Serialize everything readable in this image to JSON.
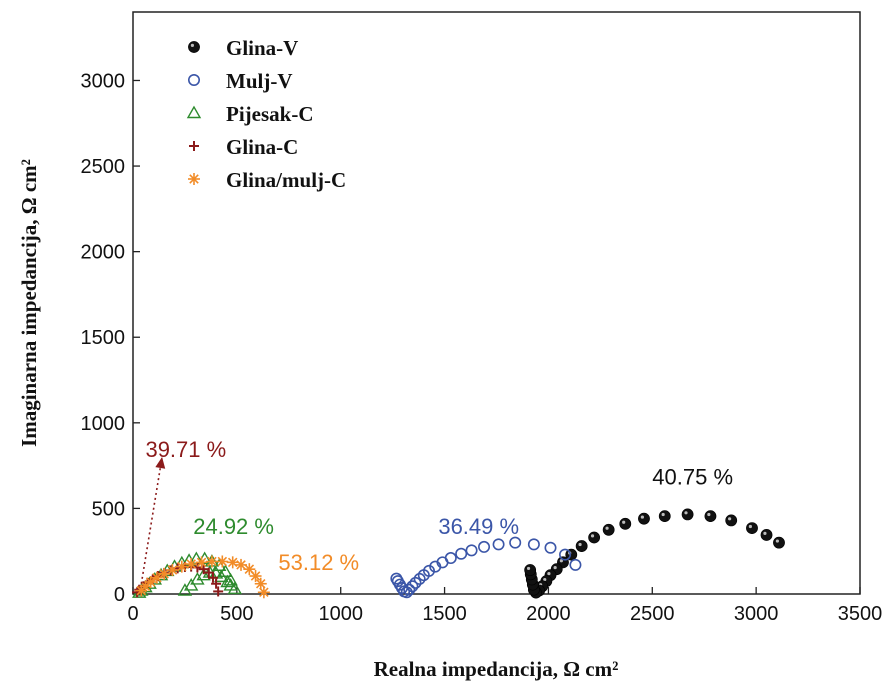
{
  "chart_data": {
    "type": "scatter",
    "xlabel": "Realna impedancija, Ω cm²",
    "ylabel": "Imaginarna impedancija, Ω cm²",
    "xlim": [
      0,
      3500
    ],
    "ylim": [
      0,
      3400
    ],
    "xticks": [
      "0",
      "500",
      "1000",
      "1500",
      "2000",
      "2500",
      "3000",
      "3500"
    ],
    "yticks": [
      "0",
      "500",
      "1000",
      "1500",
      "2000",
      "2500",
      "3000"
    ],
    "grid": false,
    "legend_position": "top-left",
    "series": [
      {
        "name": "Glina-V",
        "marker": "filled-circle",
        "color": "#111111",
        "x": [
          3110,
          3050,
          2980,
          2880,
          2780,
          2670,
          2560,
          2460,
          2370,
          2290,
          2220,
          2160,
          2110,
          2070,
          2040,
          2010,
          1990,
          1970,
          1955,
          1940,
          1930,
          1925,
          1920,
          1915,
          1912
        ],
        "y": [
          300,
          345,
          385,
          430,
          455,
          465,
          455,
          440,
          410,
          375,
          330,
          280,
          230,
          185,
          145,
          110,
          75,
          45,
          20,
          8,
          25,
          55,
          85,
          115,
          140
        ]
      },
      {
        "name": "Mulj-V",
        "marker": "open-circle",
        "color": "#3b56a8",
        "x": [
          2130,
          2080,
          2010,
          1930,
          1840,
          1760,
          1690,
          1630,
          1580,
          1530,
          1490,
          1455,
          1425,
          1400,
          1380,
          1360,
          1345,
          1330,
          1318,
          1305,
          1295,
          1285,
          1275,
          1268
        ],
        "y": [
          170,
          230,
          270,
          290,
          300,
          290,
          275,
          255,
          235,
          210,
          185,
          160,
          135,
          110,
          88,
          65,
          45,
          25,
          10,
          15,
          35,
          55,
          75,
          90
        ]
      },
      {
        "name": "Pijesak-C",
        "marker": "open-triangle",
        "color": "#2e8b2e",
        "x": [
          490,
          470,
          445,
          415,
          380,
          345,
          305,
          270,
          235,
          200,
          165,
          135,
          105,
          80,
          60,
          40,
          30,
          250,
          280,
          310,
          340,
          370,
          400,
          425,
          455,
          470
        ],
        "y": [
          30,
          80,
          130,
          165,
          190,
          205,
          205,
          195,
          180,
          160,
          135,
          110,
          85,
          60,
          40,
          20,
          8,
          20,
          50,
          85,
          110,
          125,
          120,
          100,
          70,
          50
        ]
      },
      {
        "name": "Glina-C",
        "marker": "plus",
        "color": "#8b1a1a",
        "x": [
          410,
          400,
          385,
          365,
          340,
          310,
          280,
          250,
          215,
          180,
          150,
          120,
          95,
          70,
          50,
          30,
          20
        ],
        "y": [
          15,
          60,
          95,
          125,
          145,
          155,
          160,
          158,
          150,
          138,
          122,
          105,
          85,
          65,
          45,
          25,
          10
        ]
      },
      {
        "name": "Glina/mulj-C",
        "marker": "asterisk",
        "color": "#f28c28",
        "x": [
          630,
          615,
          590,
          560,
          520,
          480,
          430,
          380,
          330,
          280,
          235,
          190,
          150,
          115,
          85,
          60,
          40
        ],
        "y": [
          10,
          60,
          105,
          145,
          170,
          185,
          190,
          190,
          185,
          175,
          160,
          140,
          118,
          95,
          70,
          45,
          20
        ]
      }
    ],
    "annotations": [
      {
        "text": "40.75 %",
        "x": 2500,
        "y": 640,
        "color": "#111111"
      },
      {
        "text": "36.49 %",
        "x": 1470,
        "y": 350,
        "color": "#3b56a8"
      },
      {
        "text": "24.92 %",
        "x": 290,
        "y": 350,
        "color": "#2e8b2e"
      },
      {
        "text": "53.12 %",
        "x": 700,
        "y": 140,
        "color": "#f28c28"
      },
      {
        "text": "39.71 %",
        "x": 60,
        "y": 800,
        "color": "#8b1a1a"
      }
    ],
    "arrow": {
      "x_from": 40,
      "y_from": 60,
      "x_to": 140,
      "y_to": 800,
      "color": "#8b1a1a"
    }
  }
}
